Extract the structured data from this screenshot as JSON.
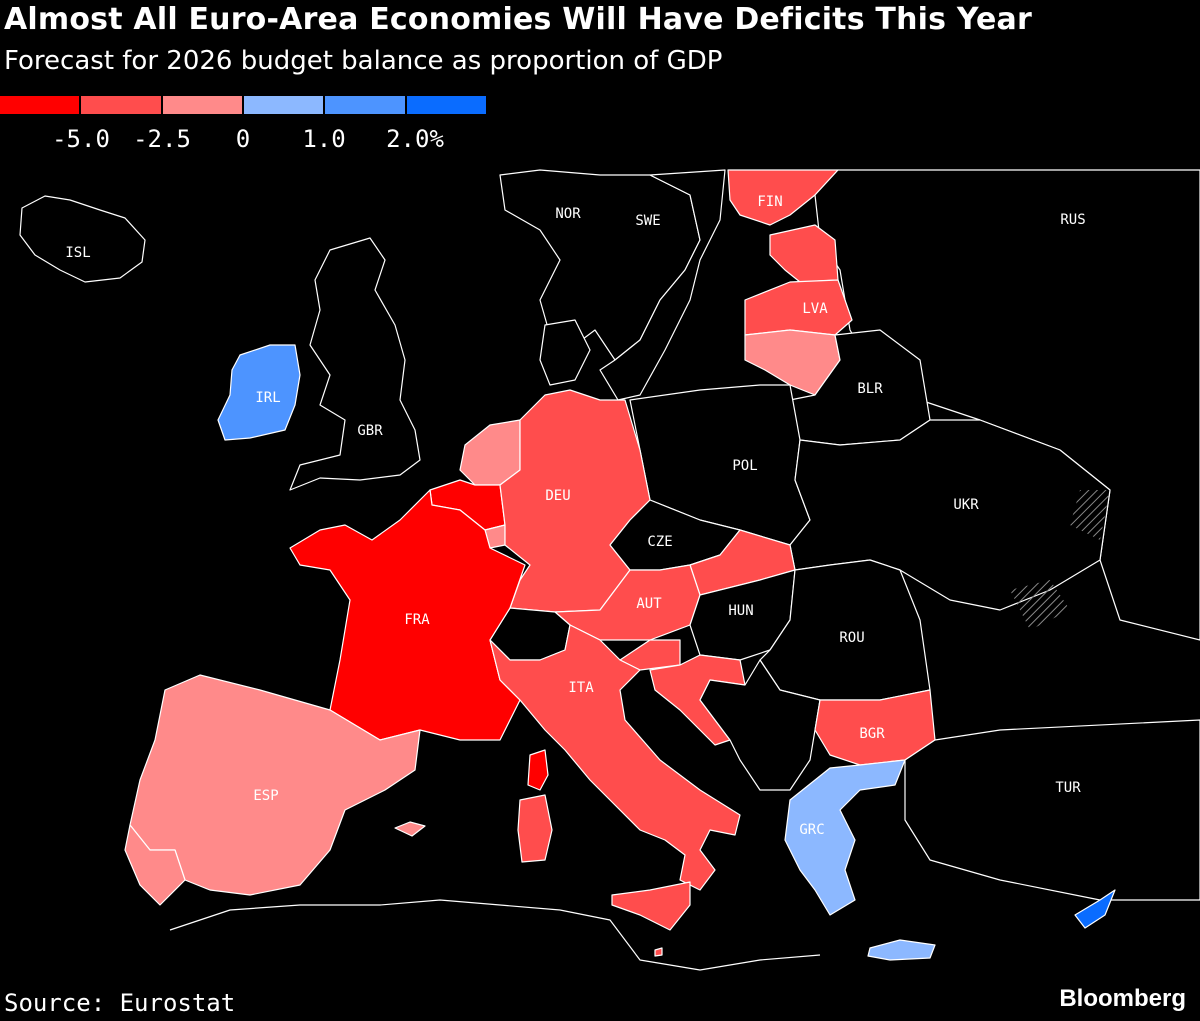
{
  "title": "Almost All Euro-Area Economies Will Have Deficits This Year",
  "subtitle": "Forecast for 2026 budget balance as proportion of GDP",
  "legend": {
    "colors": [
      "#ff0000",
      "#ff4d4d",
      "#ff8a8a",
      "#8cb8ff",
      "#4d94ff",
      "#0a6cff"
    ],
    "ticks": [
      "-5.0",
      "-2.5",
      "0",
      "1.0",
      "2.0%"
    ]
  },
  "colors": {
    "background": "#000000",
    "border": "#ffffff",
    "non_euro": "#000000"
  },
  "countries": {
    "ISL": "ISL",
    "NOR": "NOR",
    "SWE": "SWE",
    "FIN": "FIN",
    "RUS": "RUS",
    "LVA": "LVA",
    "IRL": "IRL",
    "GBR": "GBR",
    "BLR": "BLR",
    "POL": "POL",
    "DEU": "DEU",
    "UKR": "UKR",
    "CZE": "CZE",
    "AUT": "AUT",
    "HUN": "HUN",
    "FRA": "FRA",
    "ROU": "ROU",
    "ITA": "ITA",
    "BGR": "BGR",
    "ESP": "ESP",
    "TUR": "TUR",
    "GRC": "GRC"
  },
  "source": "Source: Eurostat",
  "brand": "Bloomberg"
}
